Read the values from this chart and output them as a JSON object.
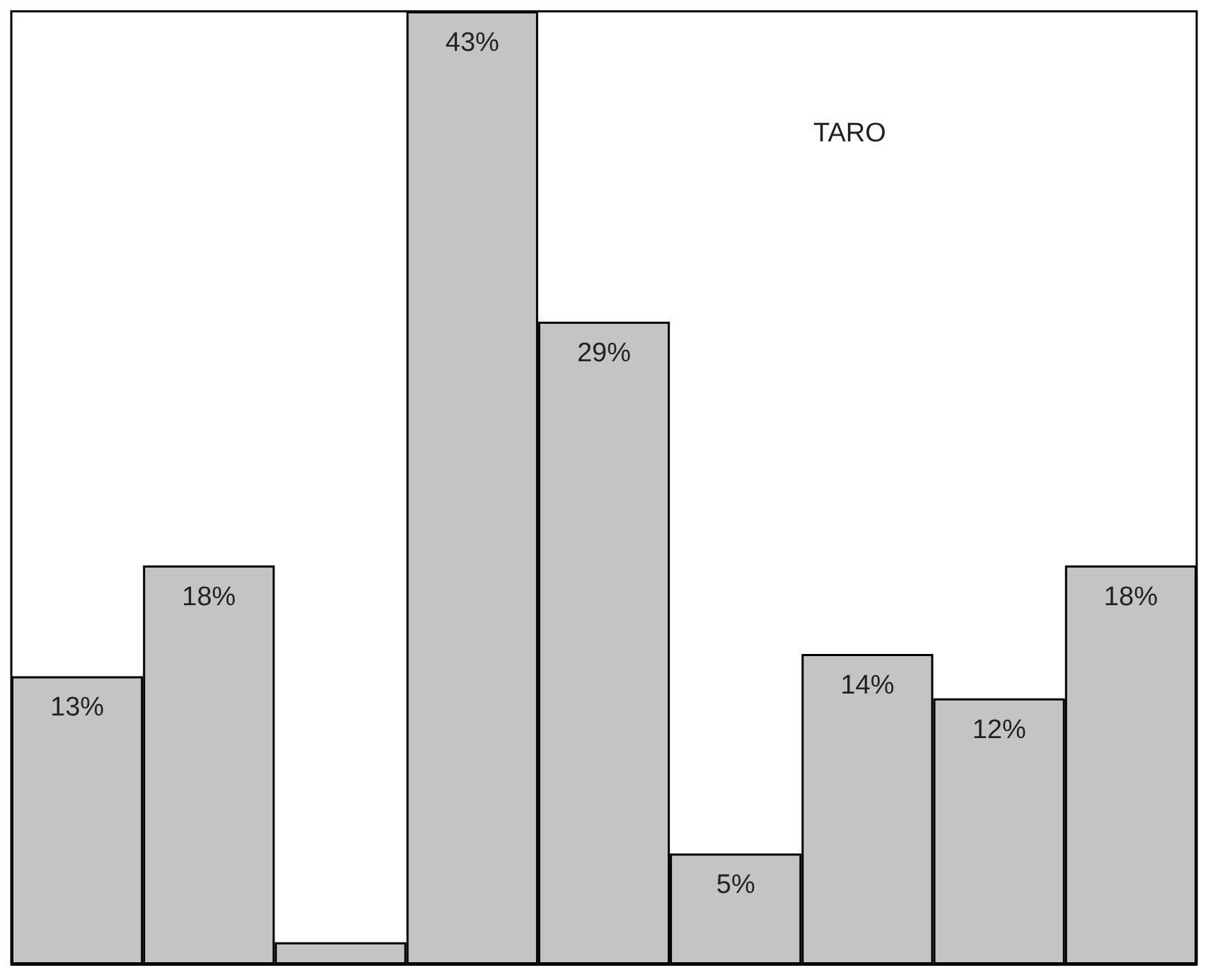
{
  "chart_data": {
    "type": "bar",
    "title": "TARO",
    "categories": [
      null,
      null,
      null,
      null,
      null,
      null,
      null,
      null,
      null
    ],
    "values": [
      13,
      18,
      1,
      43,
      29,
      5,
      14,
      12,
      18
    ],
    "value_labels": [
      "13%",
      "18%",
      null,
      "43%",
      "29%",
      "5%",
      "14%",
      "12%",
      "18%"
    ],
    "color": "#c4c4c4",
    "tick_labels": false
  }
}
